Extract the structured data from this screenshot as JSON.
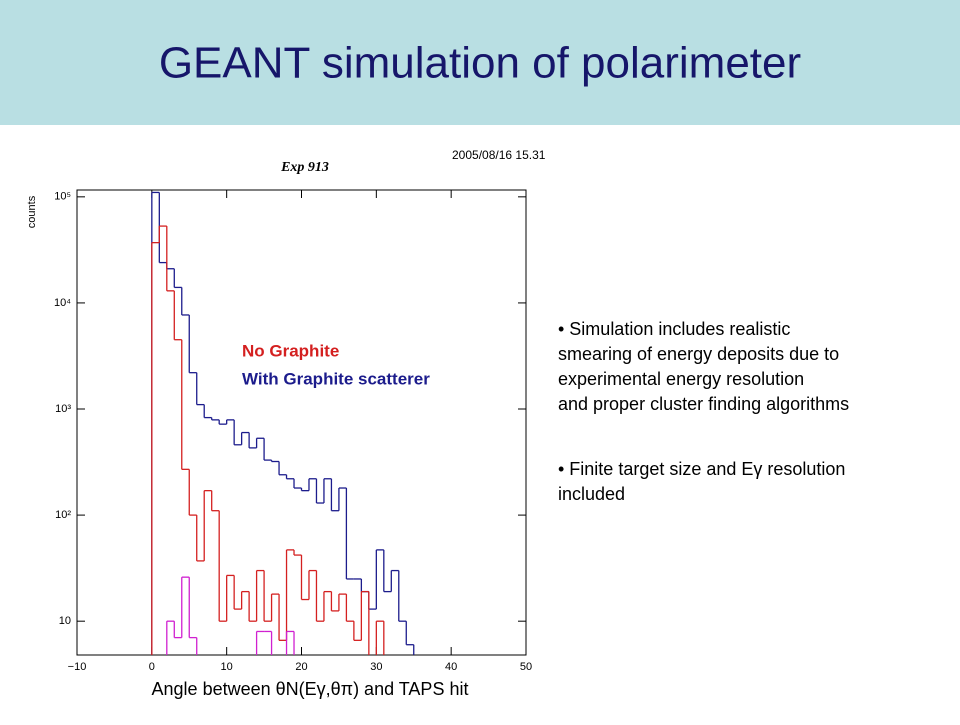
{
  "title": "GEANT simulation of polarimeter",
  "bullets": [
    {
      "lines": [
        "• Simulation includes realistic",
        "smearing of energy deposits due to",
        "experimental energy resolution",
        "and proper cluster finding algorithms"
      ]
    },
    {
      "lines": [
        "• Finite target size and Eγ resolution",
        "included"
      ]
    }
  ],
  "chart_data": {
    "type": "histogram",
    "log_y": true,
    "title": "Exp 913",
    "subtitle": "2005/08/16  15.31",
    "y_label": "counts",
    "x_label": "Angle between θN(Eγ,θπ) and TAPS hit",
    "xlim": [
      -10,
      50
    ],
    "xticks": [
      {
        "value": -10,
        "label": "−10"
      },
      0,
      10,
      20,
      30,
      40,
      50
    ],
    "ylim": [
      4.8,
      116000
    ],
    "yticks": [
      10,
      {
        "value": 100,
        "label": "10²"
      },
      {
        "value": 1000,
        "label": "10³"
      },
      {
        "value": 10000,
        "label": "10⁴"
      },
      {
        "value": 100000,
        "label": "10⁵"
      }
    ],
    "bins": [
      0,
      1,
      2,
      3,
      4,
      5,
      6,
      7,
      8,
      9,
      10,
      11,
      12,
      13,
      14,
      15,
      16,
      17,
      18,
      19,
      20,
      21,
      22,
      23,
      24,
      25,
      26,
      27,
      28,
      29,
      30,
      31,
      32,
      33,
      34,
      35
    ],
    "series": [
      {
        "name": "With Graphite scatterer",
        "color": "#1c1c8c",
        "values": [
          110000,
          24000,
          21000,
          14000,
          7700,
          2200,
          1100,
          830,
          790,
          720,
          790,
          460,
          600,
          430,
          530,
          330,
          320,
          240,
          220,
          180,
          170,
          220,
          130,
          220,
          110,
          180,
          25,
          25,
          19,
          13,
          47,
          19,
          30,
          10,
          6
        ]
      },
      {
        "name": "No Graphite",
        "color": "#d42020",
        "values": [
          37000,
          53000,
          13000,
          4500,
          270,
          100,
          37,
          170,
          110,
          10,
          27,
          13,
          19,
          10,
          30,
          10,
          18,
          6.6,
          47,
          42,
          16,
          30,
          10,
          19,
          12.5,
          18,
          10,
          6.6,
          19,
          null,
          10,
          null,
          null,
          null,
          null
        ]
      },
      {
        "color": "#d020d0",
        "values": [
          null,
          null,
          10,
          7,
          26,
          7,
          null,
          null,
          null,
          null,
          null,
          null,
          null,
          null,
          8,
          8,
          null,
          null,
          8,
          null,
          null,
          null,
          null,
          null,
          null,
          null,
          null,
          null,
          null,
          null,
          null,
          null,
          null,
          null,
          null
        ]
      }
    ]
  }
}
